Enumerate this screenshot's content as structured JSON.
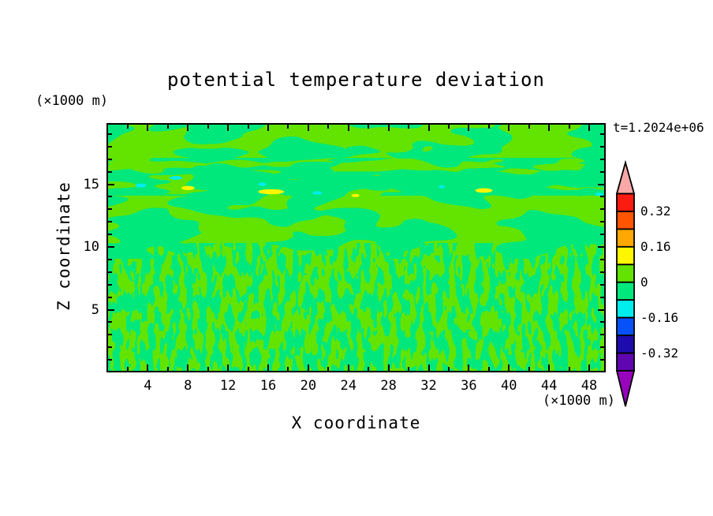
{
  "title": "potential temperature deviation",
  "time_label": "t=1.2024e+06",
  "axes": {
    "x": {
      "label": "X coordinate",
      "unit": "(×1000 m)",
      "range": [
        0,
        49.6
      ],
      "major_ticks": [
        4,
        8,
        12,
        16,
        20,
        24,
        28,
        32,
        36,
        40,
        44,
        48
      ],
      "minor_ticks": [
        2,
        6,
        10,
        14,
        18,
        22,
        26,
        30,
        34,
        38,
        42,
        46
      ]
    },
    "z": {
      "label": "Z coordinate",
      "unit": "(×1000 m)",
      "range": [
        0,
        19.75
      ],
      "major_ticks": [
        5,
        10,
        15
      ],
      "minor_ticks": [
        1,
        2,
        3,
        4,
        6,
        7,
        8,
        9,
        11,
        12,
        13,
        14,
        16,
        17,
        18,
        19
      ]
    }
  },
  "palette": {
    "over": "#f9a7a7",
    "red": "#fc1b10",
    "orangered": "#ff5400",
    "orange": "#ffa702",
    "yellow": "#fff600",
    "green": "#62e400",
    "springgreen": "#00e87c",
    "cyan": "#00eded",
    "blue": "#0752f8",
    "navy": "#1e0bae",
    "indigo": "#5f06b0",
    "under": "#9704bc",
    "frame": "#000000",
    "background": "#ffffff"
  },
  "colorbar": {
    "box_colors_top_to_bottom": [
      "#fc1b10",
      "#ff5400",
      "#ffa702",
      "#fff600",
      "#62e400",
      "#00e87c",
      "#00eded",
      "#0752f8",
      "#1e0bae",
      "#5f06b0"
    ],
    "arrow_top_color": "#f9a7a7",
    "arrow_bottom_color": "#9704bc",
    "labels": [
      "0.32",
      "0.16",
      "0",
      "-0.16",
      "-0.32"
    ],
    "label_boundary_slots": [
      1,
      3,
      5,
      7,
      9
    ]
  },
  "chart_data": {
    "type": "heatmap",
    "subtype": "filled-contour",
    "title": "potential temperature deviation",
    "xlabel": "X coordinate (×1000 m)",
    "ylabel": "Z coordinate (×1000 m)",
    "time_annotation": "t=1.2024e+06",
    "xlim": [
      0,
      49.6
    ],
    "ylim": [
      0,
      19.75
    ],
    "grid": false,
    "legend_position": "right-colorbar",
    "contour_levels": [
      -0.4,
      -0.32,
      -0.24,
      -0.16,
      -0.08,
      0,
      0.08,
      0.16,
      0.24,
      0.32,
      0.4
    ],
    "level_colors_low_to_high": [
      "#9704bc",
      "#5f06b0",
      "#1e0bae",
      "#0752f8",
      "#00eded",
      "#00e87c",
      "#62e400",
      "#fff600",
      "#ffa702",
      "#ff5400",
      "#fc1b10",
      "#f9a7a7"
    ],
    "field_summary": "Field is dominated by values in [-0.08, 0.08]: smooth large interleaved blobs of 0..0.08 (green) and -0.08..0 (spring green) above z≈10; fine vertically-streaked turbulent mottling of the same two bands below z≈10; a thin wave-breaking band near z≈14-15.5 contains small extrema pockets.",
    "features": [
      {
        "color": "cyan",
        "x": 3.3,
        "z": 14.9,
        "w": 1.1,
        "h": 0.32
      },
      {
        "color": "cyan",
        "x": 6.8,
        "z": 15.5,
        "w": 1.3,
        "h": 0.32
      },
      {
        "color": "yellow",
        "x": 8.0,
        "z": 14.7,
        "w": 1.3,
        "h": 0.34
      },
      {
        "color": "cyan",
        "x": 15.4,
        "z": 15.0,
        "w": 0.8,
        "h": 0.28
      },
      {
        "color": "yellow",
        "x": 16.3,
        "z": 14.4,
        "w": 2.6,
        "h": 0.4
      },
      {
        "color": "cyan",
        "x": 20.9,
        "z": 14.3,
        "w": 0.95,
        "h": 0.28
      },
      {
        "color": "yellow",
        "x": 24.7,
        "z": 14.1,
        "w": 0.8,
        "h": 0.26
      },
      {
        "color": "cyan",
        "x": 33.3,
        "z": 14.8,
        "w": 0.65,
        "h": 0.24
      },
      {
        "color": "yellow",
        "x": 37.5,
        "z": 14.5,
        "w": 1.7,
        "h": 0.36
      },
      {
        "color": "cyan",
        "x": 49.0,
        "z": 14.2,
        "w": 0.8,
        "h": 0.26
      }
    ],
    "shear_lines": [
      {
        "z": 14.2,
        "x_from": 0,
        "x_to": 15.3
      },
      {
        "z": 14.25,
        "x_from": 33,
        "x_to": 49.6
      }
    ]
  }
}
